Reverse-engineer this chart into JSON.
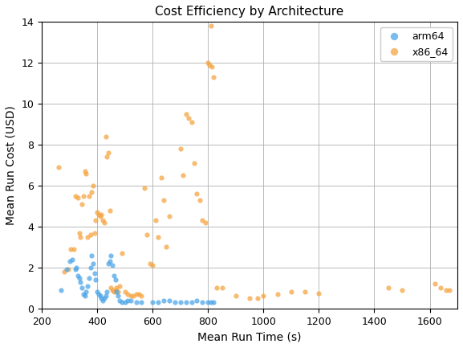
{
  "title": "Cost Efficiency by Architecture",
  "xlabel": "Mean Run Time (s)",
  "ylabel": "Mean Run Cost (USD)",
  "xlim": [
    200,
    1700
  ],
  "ylim": [
    0,
    14
  ],
  "arm64_x": [
    270,
    290,
    300,
    310,
    320,
    325,
    330,
    335,
    340,
    345,
    350,
    355,
    360,
    365,
    370,
    375,
    380,
    385,
    390,
    395,
    400,
    405,
    410,
    415,
    420,
    425,
    430,
    435,
    440,
    445,
    450,
    455,
    460,
    465,
    470,
    475,
    480,
    490,
    500,
    510,
    520,
    540,
    560,
    600,
    620,
    640,
    660,
    680,
    700,
    720,
    740,
    760,
    780,
    800,
    810,
    820
  ],
  "arm64_y": [
    0.9,
    1.9,
    2.3,
    2.4,
    1.9,
    2.0,
    1.6,
    1.5,
    1.3,
    1.0,
    0.7,
    0.6,
    0.8,
    1.1,
    1.5,
    2.0,
    2.6,
    2.2,
    1.7,
    1.4,
    0.8,
    0.7,
    0.6,
    0.5,
    0.4,
    0.5,
    0.6,
    0.8,
    2.2,
    2.3,
    2.6,
    2.1,
    1.6,
    1.4,
    0.8,
    0.6,
    0.4,
    0.3,
    0.3,
    0.4,
    0.4,
    0.3,
    0.3,
    0.3,
    0.3,
    0.4,
    0.4,
    0.3,
    0.3,
    0.3,
    0.3,
    0.4,
    0.3,
    0.3,
    0.3,
    0.3
  ],
  "x86_x": [
    260,
    280,
    295,
    305,
    315,
    320,
    330,
    335,
    340,
    345,
    350,
    355,
    360,
    365,
    370,
    375,
    380,
    385,
    390,
    395,
    400,
    405,
    410,
    415,
    420,
    425,
    430,
    435,
    440,
    445,
    450,
    455,
    460,
    465,
    470,
    475,
    480,
    490,
    500,
    510,
    520,
    530,
    540,
    550,
    560,
    570,
    580,
    590,
    600,
    610,
    620,
    630,
    640,
    650,
    660,
    700,
    710,
    720,
    730,
    740,
    750,
    760,
    770,
    780,
    790,
    800,
    805,
    810,
    815,
    820,
    830,
    850,
    900,
    950,
    980,
    1000,
    1050,
    1100,
    1150,
    1200,
    1450,
    1500,
    1620,
    1640,
    1660,
    1670
  ],
  "x86_y": [
    6.9,
    1.8,
    1.9,
    2.9,
    2.9,
    5.5,
    5.4,
    3.7,
    3.5,
    5.1,
    5.5,
    6.7,
    6.6,
    3.5,
    5.5,
    3.6,
    5.7,
    6.0,
    3.7,
    4.3,
    4.7,
    4.6,
    4.5,
    4.6,
    4.3,
    4.2,
    8.4,
    7.4,
    7.6,
    4.8,
    1.0,
    0.9,
    0.8,
    0.9,
    1.0,
    0.8,
    1.1,
    2.7,
    0.8,
    0.7,
    0.6,
    0.6,
    0.7,
    0.7,
    0.6,
    5.9,
    3.6,
    2.2,
    2.1,
    4.3,
    3.5,
    6.4,
    5.3,
    3.0,
    4.5,
    7.8,
    6.5,
    9.5,
    9.3,
    9.1,
    7.1,
    5.6,
    5.3,
    4.3,
    4.2,
    12.0,
    11.9,
    13.8,
    11.8,
    11.3,
    1.0,
    1.0,
    0.6,
    0.5,
    0.5,
    0.6,
    0.7,
    0.8,
    0.8,
    0.75,
    1.0,
    0.9,
    1.2,
    1.0,
    0.9,
    0.9
  ],
  "arm64_color": "#4da6e8",
  "x86_color": "#f5a442",
  "background_color": "#ffffff",
  "grid_color": "#b0b0b0",
  "legend_labels": [
    "arm64",
    "x86_64"
  ],
  "marker_size": 20,
  "marker_alpha": 0.75,
  "xticks": [
    200,
    400,
    600,
    800,
    1000,
    1200,
    1400,
    1600
  ],
  "yticks": [
    0,
    2,
    4,
    6,
    8,
    10,
    12,
    14
  ],
  "title_fontsize": 11,
  "label_fontsize": 10,
  "tick_fontsize": 9,
  "legend_fontsize": 9
}
